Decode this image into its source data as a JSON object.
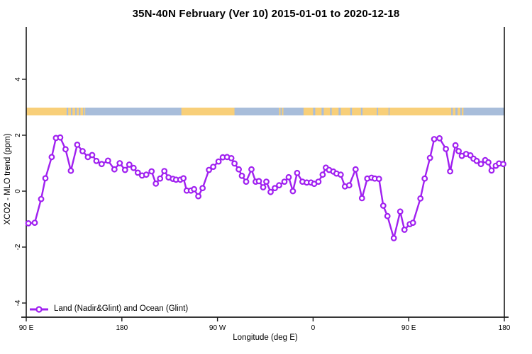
{
  "figure": {
    "title": "35N-40N February (Ver 10)  2015-01-01 to 2020-12-18"
  },
  "legend": {
    "label": "Land (Nadir&Glint) and Ocean (Glint)"
  },
  "colors": {
    "series": "#A020F0",
    "marker_fill": "#ffffff",
    "land": "#F8CF79",
    "ocean": "#A8BDDA",
    "axis": "#1a1a1a"
  },
  "strip": {
    "description": "land/ocean map band near y=2.85 ppm",
    "land_segments": [
      {
        "from": 0,
        "to": 46
      },
      {
        "from": 47.5,
        "to": 49.5
      },
      {
        "from": 51,
        "to": 53.5
      },
      {
        "from": 54.5,
        "to": 55.5
      },
      {
        "from": 146,
        "to": 196
      },
      {
        "from": 238,
        "to": 239.3
      },
      {
        "from": 240.8,
        "to": 242
      },
      {
        "from": 261,
        "to": 400
      },
      {
        "from": 401.5,
        "to": 404
      },
      {
        "from": 406,
        "to": 408.5
      },
      {
        "from": 410,
        "to": 411.5
      }
    ],
    "ocean_specks": [
      {
        "from": 38,
        "to": 39.5
      },
      {
        "from": 42,
        "to": 43.5
      },
      {
        "from": 270,
        "to": 272
      },
      {
        "from": 278,
        "to": 280
      },
      {
        "from": 286,
        "to": 287.5
      },
      {
        "from": 294,
        "to": 296
      },
      {
        "from": 305,
        "to": 306.5
      },
      {
        "from": 315,
        "to": 316.5
      },
      {
        "from": 330,
        "to": 331.2
      },
      {
        "from": 341,
        "to": 342
      }
    ]
  },
  "chart_data": {
    "type": "line",
    "title": "35N-40N February (Ver 10)  2015-01-01 to 2020-12-18",
    "xlabel": "Longitude (deg E)",
    "ylabel": "XCO2 - MLO trend (ppm)",
    "x_unit": "degrees east of 90E, axis wraps 90E-180-90W-0-90E-180 (450 deg total)",
    "xlim": [
      0,
      450
    ],
    "ylim": [
      -4.5,
      5.4
    ],
    "grid": false,
    "legend_position": "bottom-left",
    "legend_entries": [
      "Land (Nadir&Glint) and Ocean (Glint)"
    ],
    "x_ticks": [
      {
        "pos": 0,
        "label": "90 E"
      },
      {
        "pos": 90,
        "label": "180"
      },
      {
        "pos": 180,
        "label": "90 W"
      },
      {
        "pos": 270,
        "label": "0"
      },
      {
        "pos": 360,
        "label": "90 E"
      },
      {
        "pos": 450,
        "label": "180"
      }
    ],
    "y_ticks": [
      {
        "pos": 4,
        "label": "4"
      },
      {
        "pos": 2,
        "label": "2"
      },
      {
        "pos": 0,
        "label": "0"
      },
      {
        "pos": -2,
        "label": "-2"
      },
      {
        "pos": -4,
        "label": "-4"
      }
    ],
    "points": [
      [
        2,
        -1.15
      ],
      [
        8,
        -1.13
      ],
      [
        14,
        -0.28
      ],
      [
        18,
        0.46
      ],
      [
        24,
        1.22
      ],
      [
        28,
        1.9
      ],
      [
        32,
        1.92
      ],
      [
        37,
        1.5
      ],
      [
        42,
        0.73
      ],
      [
        48,
        1.66
      ],
      [
        53,
        1.43
      ],
      [
        58,
        1.22
      ],
      [
        62,
        1.29
      ],
      [
        66,
        1.08
      ],
      [
        71,
        0.97
      ],
      [
        77,
        1.09
      ],
      [
        83,
        0.78
      ],
      [
        88,
        1.0
      ],
      [
        93,
        0.76
      ],
      [
        97,
        0.95
      ],
      [
        101,
        0.83
      ],
      [
        105,
        0.66
      ],
      [
        109,
        0.56
      ],
      [
        113,
        0.59
      ],
      [
        118,
        0.71
      ],
      [
        122,
        0.27
      ],
      [
        126,
        0.45
      ],
      [
        130,
        0.72
      ],
      [
        134,
        0.49
      ],
      [
        138,
        0.44
      ],
      [
        141,
        0.41
      ],
      [
        145,
        0.41
      ],
      [
        148,
        0.46
      ],
      [
        151,
        0.02
      ],
      [
        155,
        0.02
      ],
      [
        158,
        0.07
      ],
      [
        162,
        -0.18
      ],
      [
        166,
        0.11
      ],
      [
        172,
        0.76
      ],
      [
        176,
        0.87
      ],
      [
        181,
        1.06
      ],
      [
        185,
        1.21
      ],
      [
        189,
        1.22
      ],
      [
        193,
        1.18
      ],
      [
        196,
        0.99
      ],
      [
        200,
        0.78
      ],
      [
        203,
        0.55
      ],
      [
        207,
        0.34
      ],
      [
        212,
        0.78
      ],
      [
        216,
        0.34
      ],
      [
        219,
        0.36
      ],
      [
        223,
        0.14
      ],
      [
        226,
        0.34
      ],
      [
        230,
        -0.03
      ],
      [
        234,
        0.11
      ],
      [
        238,
        0.21
      ],
      [
        243,
        0.34
      ],
      [
        247,
        0.5
      ],
      [
        251,
        0.0
      ],
      [
        255,
        0.65
      ],
      [
        260,
        0.34
      ],
      [
        264,
        0.31
      ],
      [
        268,
        0.31
      ],
      [
        271,
        0.26
      ],
      [
        275,
        0.34
      ],
      [
        279,
        0.59
      ],
      [
        282,
        0.84
      ],
      [
        285,
        0.76
      ],
      [
        289,
        0.7
      ],
      [
        292,
        0.63
      ],
      [
        296,
        0.59
      ],
      [
        300,
        0.17
      ],
      [
        304,
        0.21
      ],
      [
        310,
        0.78
      ],
      [
        316,
        -0.25
      ],
      [
        321,
        0.45
      ],
      [
        325,
        0.48
      ],
      [
        328,
        0.45
      ],
      [
        332,
        0.44
      ],
      [
        336,
        -0.52
      ],
      [
        340,
        -0.89
      ],
      [
        346,
        -1.68
      ],
      [
        352,
        -0.73
      ],
      [
        356,
        -1.38
      ],
      [
        361,
        -1.18
      ],
      [
        364,
        -1.13
      ],
      [
        371,
        -0.26
      ],
      [
        375,
        0.45
      ],
      [
        380,
        1.19
      ],
      [
        384,
        1.86
      ],
      [
        389,
        1.89
      ],
      [
        395,
        1.51
      ],
      [
        399,
        0.71
      ],
      [
        404,
        1.64
      ],
      [
        407,
        1.43
      ],
      [
        410,
        1.26
      ],
      [
        414,
        1.33
      ],
      [
        418,
        1.28
      ],
      [
        421,
        1.16
      ],
      [
        424,
        1.08
      ],
      [
        428,
        0.97
      ],
      [
        432,
        1.11
      ],
      [
        435,
        1.03
      ],
      [
        438,
        0.74
      ],
      [
        442,
        0.91
      ],
      [
        445,
        0.99
      ],
      [
        449,
        0.97
      ]
    ]
  }
}
